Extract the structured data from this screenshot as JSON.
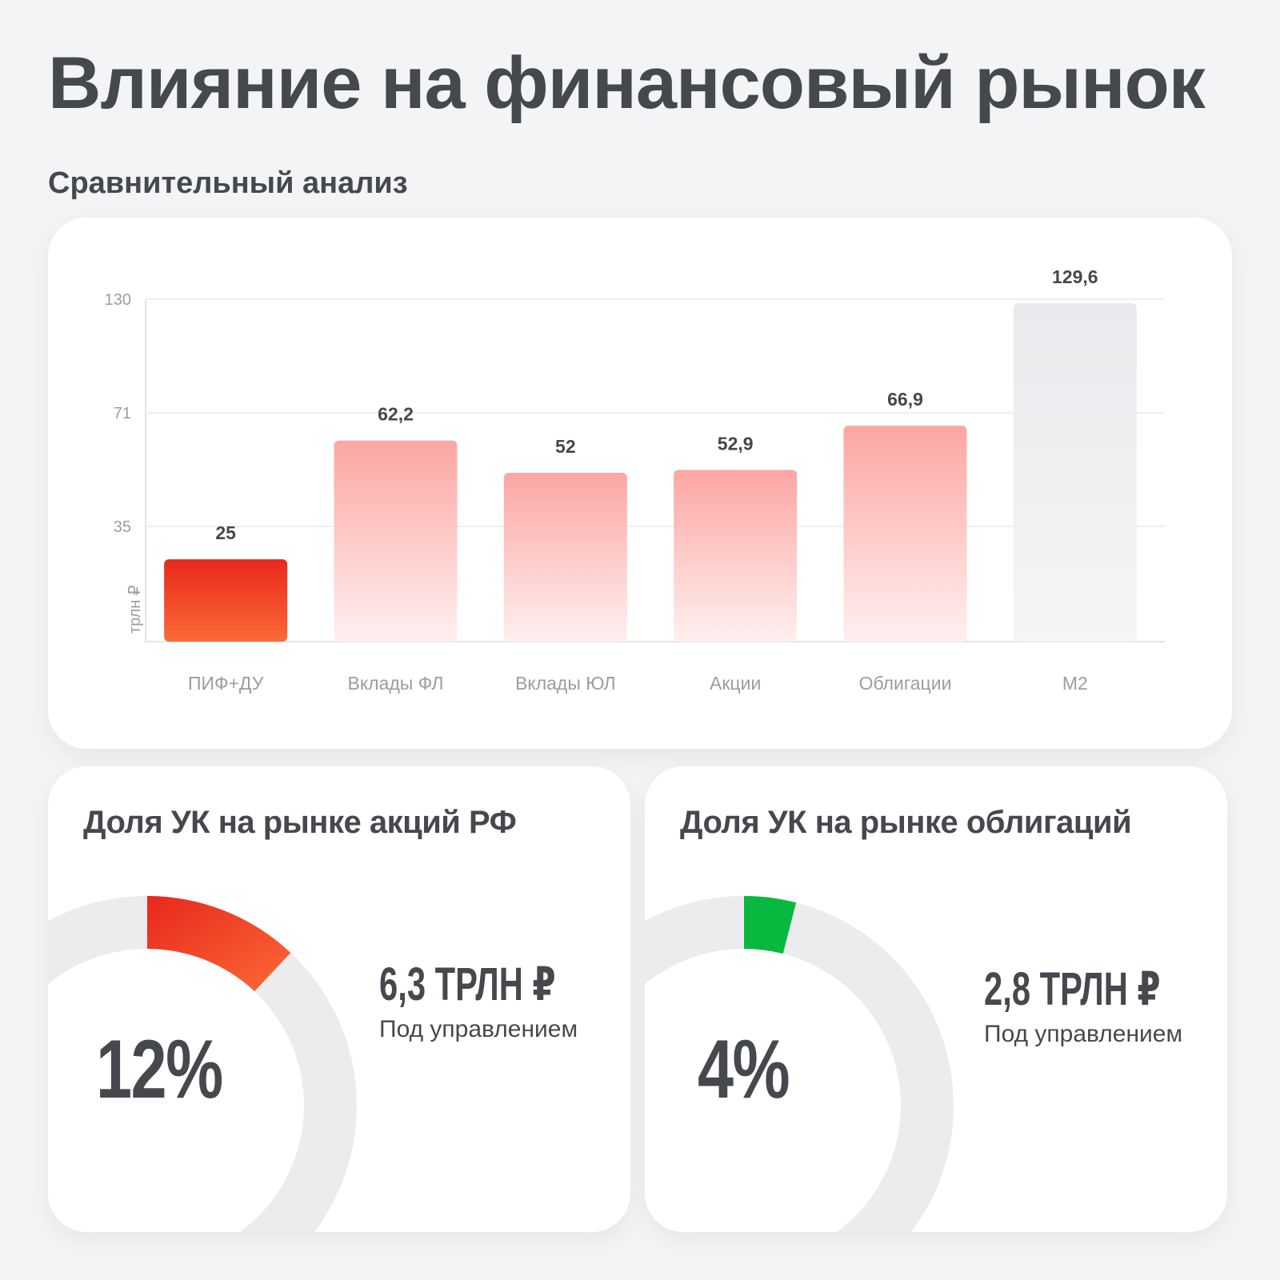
{
  "title": "Влияние на финансовый рынок",
  "subtitle": "Сравнительный анализ",
  "chart_data": {
    "type": "bar",
    "ylabel": "трлн ₽",
    "yticks": [
      35,
      71,
      130
    ],
    "ylim": [
      0,
      130
    ],
    "grid": true,
    "categories": [
      "ПИФ+ДУ",
      "Вклады ФЛ",
      "Вклады ЮЛ",
      "Акции",
      "Облигации",
      "М2"
    ],
    "values": [
      25,
      62.2,
      52,
      52.9,
      66.9,
      129.6
    ],
    "value_labels": [
      "25",
      "62,2",
      "52",
      "52,9",
      "66,9",
      "129,6"
    ],
    "colors": {
      "highlight": "#e8281c",
      "highlight_light": "#fb6a36",
      "pink": "#fca6a3",
      "pink_light": "#fff0ef",
      "gray": "#e9eaed",
      "gray_light": "#f4f5f6"
    }
  },
  "cards": [
    {
      "title": "Доля УК на рынке акций РФ",
      "percent_label": "12%",
      "percent": 12,
      "amount": "6,3 ТРЛН ₽",
      "amount_label": "Под управлением",
      "color": "#e8281c",
      "color_end": "#fb6a36"
    },
    {
      "title": "Доля УК на рынке облигаций",
      "percent_label": "4%",
      "percent": 4,
      "amount": "2,8 ТРЛН ₽",
      "amount_label": "Под управлением",
      "color": "#09b83e",
      "color_end": "#09b83e"
    }
  ]
}
